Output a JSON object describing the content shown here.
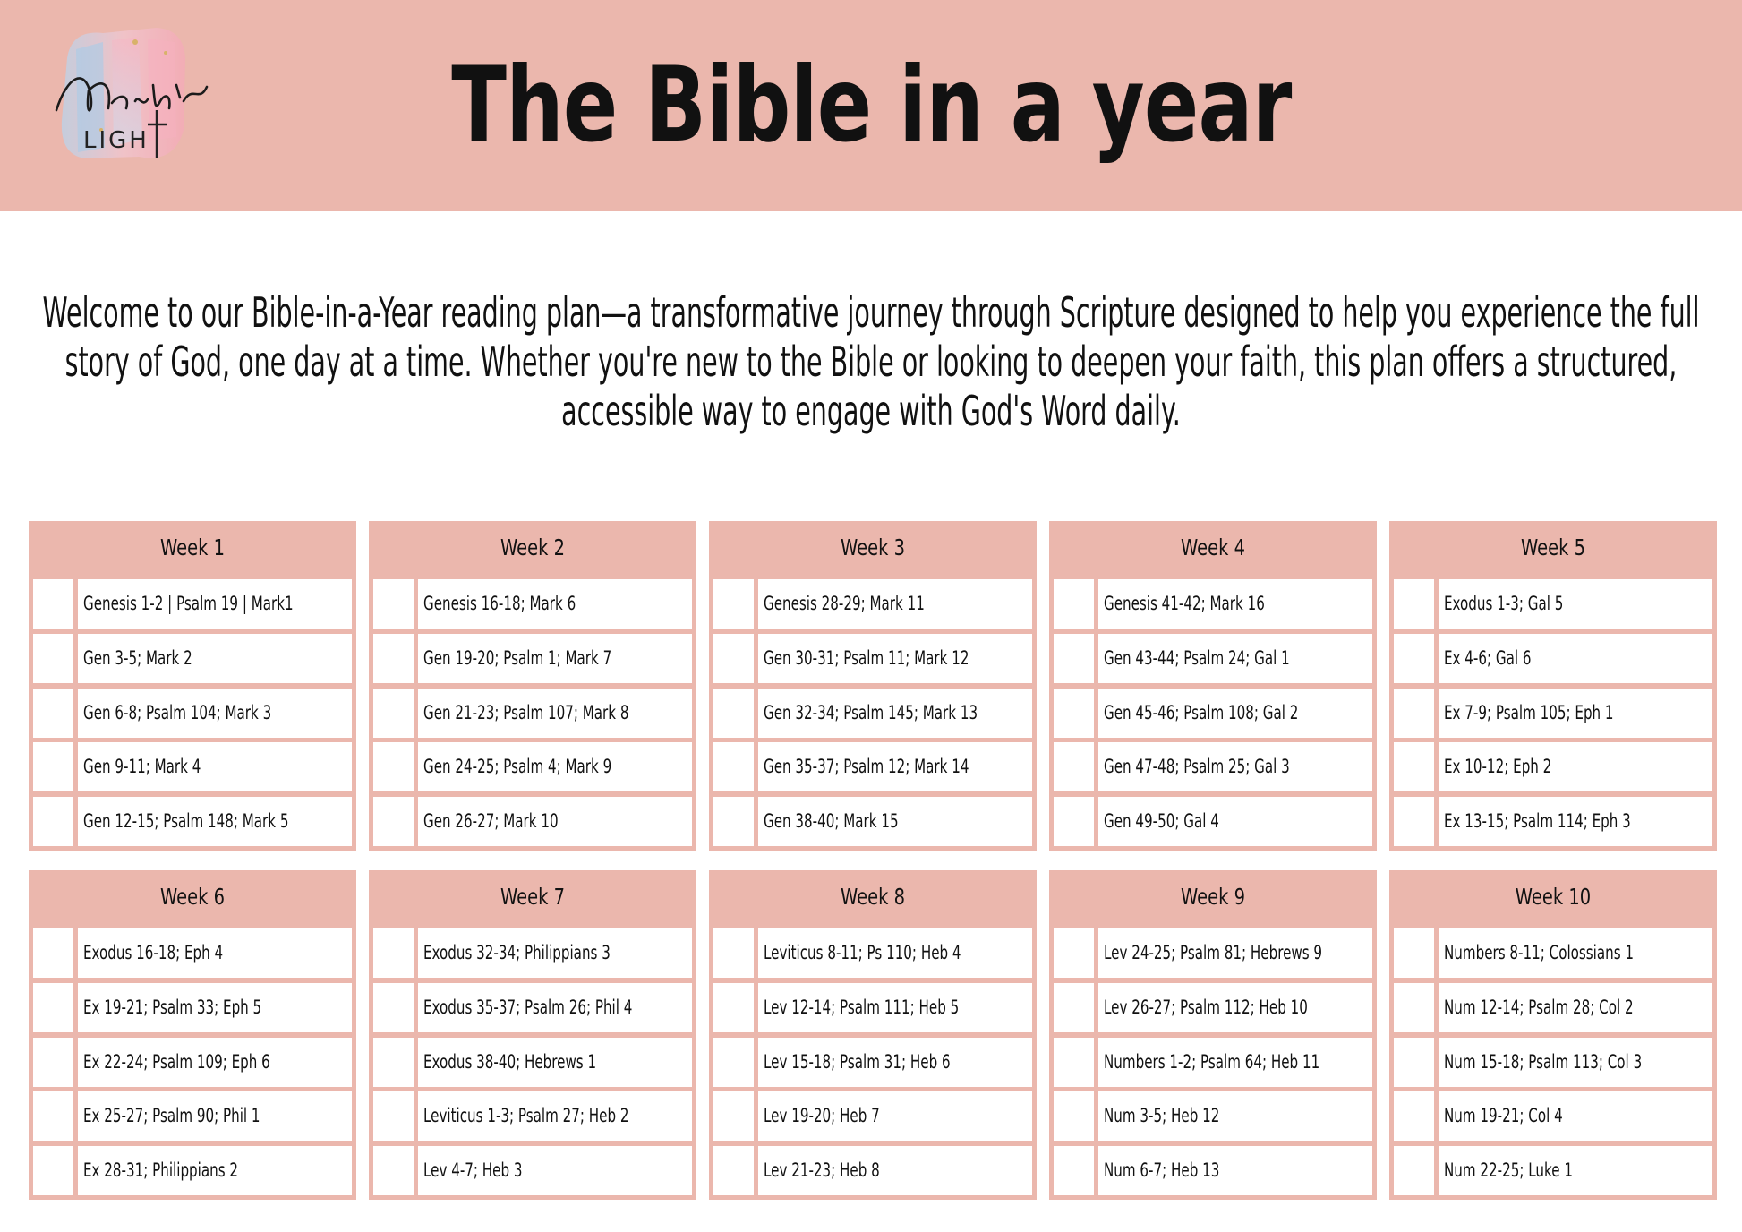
{
  "header": {
    "logo_text": "Nerial's LIGHT",
    "title": "The Bible in a year"
  },
  "intro": "Welcome to our Bible-in-a-Year reading plan—a transformative journey through Scripture designed to help you experience the full story of God, one day at a time. Whether you're new to the Bible or looking to deepen your faith, this plan offers a structured, accessible way to engage with God's Word daily.",
  "weeks": [
    {
      "label": "Week 1",
      "days": [
        "Genesis 1-2 | Psalm 19 | Mark1",
        "Gen 3-5; Mark 2",
        "Gen 6-8; Psalm 104; Mark 3",
        "Gen 9-11; Mark 4",
        "Gen 12-15; Psalm 148; Mark 5"
      ]
    },
    {
      "label": "Week 2",
      "days": [
        "Genesis 16-18; Mark 6",
        "Gen 19-20; Psalm 1; Mark 7",
        "Gen 21-23; Psalm 107; Mark 8",
        "Gen 24-25; Psalm 4; Mark 9",
        "Gen 26-27; Mark 10"
      ]
    },
    {
      "label": "Week 3",
      "days": [
        "Genesis 28-29; Mark 11",
        "Gen 30-31; Psalm 11; Mark 12",
        " Gen 32-34; Psalm 145; Mark 13",
        " Gen 35-37; Psalm 12; Mark 14",
        "Gen 38-40; Mark 15"
      ]
    },
    {
      "label": "Week 4",
      "days": [
        "Genesis 41-42; Mark 16",
        "Gen 43-44; Psalm 24; Gal 1",
        "Gen 45-46; Psalm 108; Gal 2",
        "Gen 47-48; Psalm 25; Gal 3",
        "Gen 49-50; Gal 4"
      ]
    },
    {
      "label": "Week 5",
      "days": [
        "Exodus 1-3; Gal 5",
        "Ex 4-6; Gal 6",
        "Ex 7-9; Psalm 105; Eph 1",
        "Ex 10-12; Eph 2",
        "Ex 13-15; Psalm 114; Eph 3"
      ]
    },
    {
      "label": "Week 6",
      "days": [
        "Exodus 16-18; Eph 4",
        "Ex 19-21; Psalm 33; Eph 5",
        "Ex 22-24; Psalm 109; Eph 6",
        " Ex 25-27; Psalm 90; Phil 1",
        "Ex 28-31; Philippians 2"
      ]
    },
    {
      "label": "Week 7",
      "days": [
        "Exodus 32-34; Philippians 3",
        "Exodus 35-37; Psalm 26; Phil 4",
        " Exodus 38-40; Hebrews 1",
        "Leviticus 1-3; Psalm 27; Heb 2",
        "Lev 4-7; Heb 3"
      ]
    },
    {
      "label": "Week 8",
      "days": [
        "Leviticus 8-11; Ps 110; Heb 4",
        "Lev 12-14; Psalm 111; Heb 5",
        "Lev 15-18; Psalm 31; Heb 6",
        "Lev 19-20; Heb 7",
        "Lev 21-23; Heb 8"
      ]
    },
    {
      "label": "Week 9",
      "days": [
        "Lev 24-25; Psalm 81; Hebrews 9",
        "Lev 26-27; Psalm 112; Heb 10",
        "Numbers 1-2; Psalm 64; Heb 11",
        "Num 3-5; Heb 12",
        "Num 6-7; Heb 13"
      ]
    },
    {
      "label": "Week 10",
      "days": [
        "Numbers 8-11; Colossians 1",
        " Num 12-14; Psalm 28; Col 2",
        "Num 15-18; Psalm 113; Col 3",
        " Num 19-21; Col 4",
        "Num 22-25; Luke 1"
      ]
    }
  ],
  "colors": {
    "accent": "#ebb7ad",
    "text": "#111111",
    "background": "#ffffff"
  }
}
